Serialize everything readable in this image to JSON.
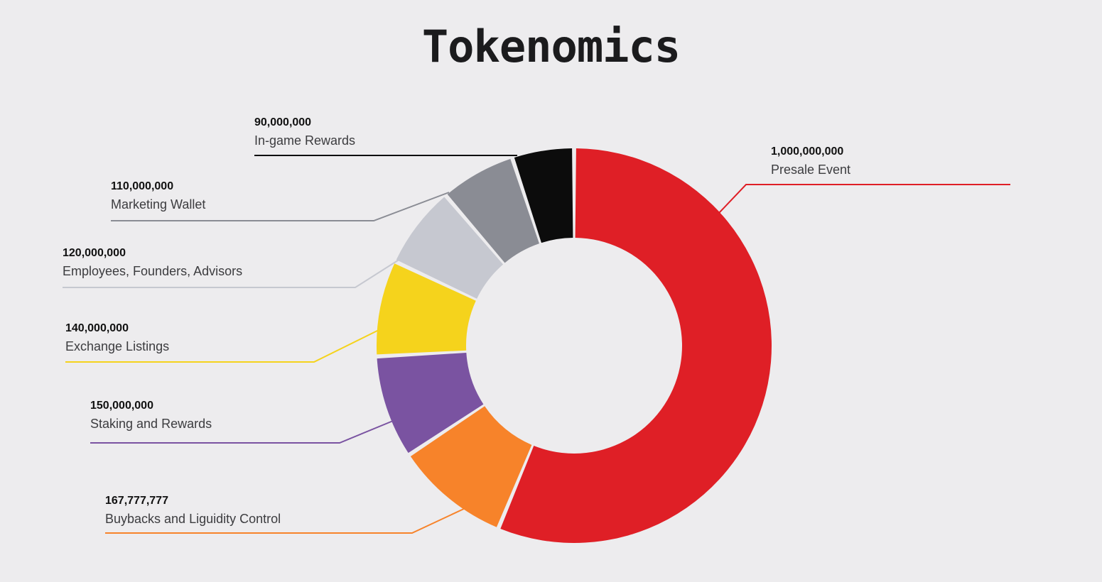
{
  "title": "Tokenomics",
  "chart_data": {
    "type": "pie",
    "variant": "donut",
    "title": "Tokenomics",
    "slices": [
      {
        "label": "Presale Event",
        "value": 1000000000,
        "value_label": "1,000,000,000",
        "color": "#df1f26"
      },
      {
        "label": "Buybacks and Liguidity Control",
        "value": 167777777,
        "value_label": "167,777,777",
        "color": "#f7832a"
      },
      {
        "label": "Staking and Rewards",
        "value": 150000000,
        "value_label": "150,000,000",
        "color": "#7a53a1"
      },
      {
        "label": "Exchange Listings",
        "value": 140000000,
        "value_label": "140,000,000",
        "color": "#f5d31c"
      },
      {
        "label": "Employees, Founders, Advisors",
        "value": 120000000,
        "value_label": "120,000,000",
        "color": "#c6c8d0"
      },
      {
        "label": "Marketing Wallet",
        "value": 110000000,
        "value_label": "110,000,000",
        "color": "#8a8c94"
      },
      {
        "label": "In-game Rewards",
        "value": 90000000,
        "value_label": "90,000,000",
        "color": "#0c0c0c"
      }
    ]
  }
}
